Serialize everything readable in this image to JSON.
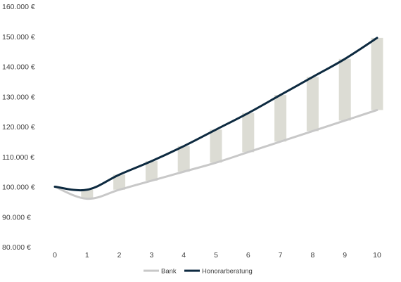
{
  "chart_data": {
    "type": "line",
    "title": "",
    "xlabel": "",
    "ylabel": "",
    "x": [
      0,
      1,
      2,
      3,
      4,
      5,
      6,
      7,
      8,
      9,
      10
    ],
    "x_tick_labels": [
      "0",
      "1",
      "2",
      "3",
      "4",
      "5",
      "6",
      "7",
      "8",
      "9",
      "10"
    ],
    "ylim": [
      80000,
      160000
    ],
    "y_ticks": [
      80000,
      90000,
      100000,
      110000,
      120000,
      130000,
      140000,
      150000,
      160000
    ],
    "y_tick_labels": [
      "80.000 €",
      "90.000 €",
      "100.000 €",
      "110.000 €",
      "120.000 €",
      "130.000 €",
      "140.000 €",
      "150.000 €",
      "160.000 €"
    ],
    "series": [
      {
        "name": "Bank",
        "color": "#c8c8c8",
        "values": [
          100000,
          96000,
          99000,
          102000,
          105000,
          108000,
          111500,
          115000,
          118500,
          122000,
          125500
        ]
      },
      {
        "name": "Honorarberatung",
        "color": "#0d2a40",
        "values": [
          100000,
          99000,
          104000,
          108500,
          113500,
          119000,
          124500,
          130500,
          136500,
          142500,
          149500
        ]
      }
    ],
    "difference_bars": {
      "color": "#dcdcd4",
      "x": [
        1,
        2,
        3,
        4,
        5,
        6,
        7,
        8,
        9,
        10
      ]
    },
    "legend": {
      "position": "bottom",
      "entries": [
        "Bank",
        "Honorarberatung"
      ]
    },
    "grid": false
  }
}
